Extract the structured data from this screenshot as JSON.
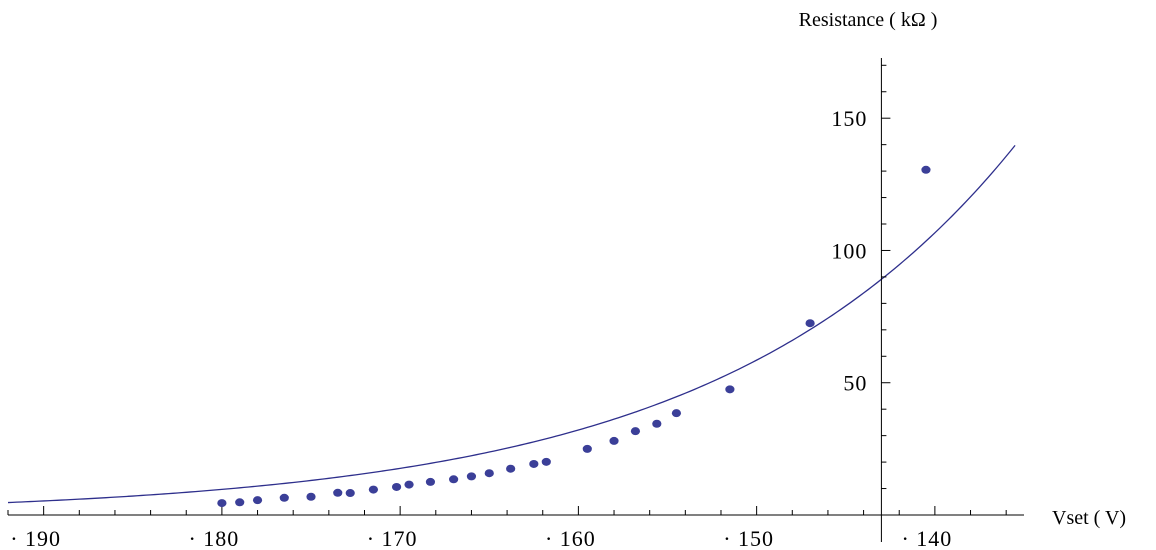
{
  "chart_data": {
    "type": "scatter",
    "xlabel": "Vset ( V)",
    "ylabel": "Resistance ( kΩ )",
    "x_axis_reversed": true,
    "xlim": [
      -192,
      -135
    ],
    "ylim": [
      0,
      172
    ],
    "x_ticks": [
      {
        "value": -190,
        "label": "· 190"
      },
      {
        "value": -180,
        "label": "· 180"
      },
      {
        "value": -170,
        "label": "· 170"
      },
      {
        "value": -160,
        "label": "· 160"
      },
      {
        "value": -150,
        "label": "· 150"
      },
      {
        "value": -140,
        "label": "· 140"
      }
    ],
    "y_ticks": [
      {
        "value": 50,
        "label": "50"
      },
      {
        "value": 100,
        "label": "100"
      },
      {
        "value": 150,
        "label": "150"
      }
    ],
    "y_axis_at_x": -143,
    "grid": false,
    "series": [
      {
        "type": "scatter",
        "color": "#3b3f98",
        "points": [
          {
            "x": -180.0,
            "y": 4.5
          },
          {
            "x": -179.0,
            "y": 4.8
          },
          {
            "x": -178.0,
            "y": 5.6
          },
          {
            "x": -176.5,
            "y": 6.5
          },
          {
            "x": -175.0,
            "y": 6.9
          },
          {
            "x": -173.5,
            "y": 8.4
          },
          {
            "x": -172.8,
            "y": 8.3
          },
          {
            "x": -171.5,
            "y": 9.6
          },
          {
            "x": -170.2,
            "y": 10.6
          },
          {
            "x": -169.5,
            "y": 11.5
          },
          {
            "x": -168.3,
            "y": 12.5
          },
          {
            "x": -167.0,
            "y": 13.5
          },
          {
            "x": -166.0,
            "y": 14.6
          },
          {
            "x": -165.0,
            "y": 15.8
          },
          {
            "x": -163.8,
            "y": 17.5
          },
          {
            "x": -162.5,
            "y": 19.3
          },
          {
            "x": -161.8,
            "y": 20.1
          },
          {
            "x": -159.5,
            "y": 25.0
          },
          {
            "x": -158.0,
            "y": 28.0
          },
          {
            "x": -156.8,
            "y": 31.7
          },
          {
            "x": -155.6,
            "y": 34.5
          },
          {
            "x": -154.5,
            "y": 38.5
          },
          {
            "x": -151.5,
            "y": 47.5
          },
          {
            "x": -147.0,
            "y": 72.5
          },
          {
            "x": -140.5,
            "y": 130.5
          }
        ]
      },
      {
        "type": "line",
        "color": "#2e2f8c",
        "function": "exponential",
        "a": 89.1,
        "b": 0.06,
        "x0": -143,
        "x_range": [
          -192,
          -135.3
        ]
      }
    ]
  }
}
